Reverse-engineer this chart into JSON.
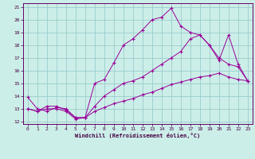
{
  "xlabel": "Windchill (Refroidissement éolien,°C)",
  "background_color": "#cceee8",
  "grid_color": "#99cccc",
  "line_color1": "#990099",
  "line_color2": "#993399",
  "line_color3": "#660066",
  "xlim": [
    -0.5,
    23.5
  ],
  "ylim": [
    11.8,
    21.3
  ],
  "yticks": [
    12,
    13,
    14,
    15,
    16,
    17,
    18,
    19,
    20,
    21
  ],
  "xticks": [
    0,
    1,
    2,
    3,
    4,
    5,
    6,
    7,
    8,
    9,
    10,
    11,
    12,
    13,
    14,
    15,
    16,
    17,
    18,
    19,
    20,
    21,
    22,
    23
  ],
  "series1_x": [
    0,
    1,
    2,
    3,
    4,
    5,
    6,
    7,
    8,
    9,
    10,
    11,
    12,
    13,
    14,
    15,
    16,
    17,
    18,
    19,
    20,
    21,
    22,
    23
  ],
  "series1_y": [
    13.9,
    13.0,
    12.8,
    13.1,
    13.0,
    12.3,
    12.3,
    15.0,
    15.3,
    16.6,
    18.0,
    18.5,
    19.2,
    20.0,
    20.2,
    20.9,
    19.5,
    19.0,
    18.8,
    18.0,
    16.8,
    18.8,
    16.5,
    15.2
  ],
  "series2_x": [
    0,
    1,
    2,
    3,
    4,
    5,
    6,
    7,
    8,
    9,
    10,
    11,
    12,
    13,
    14,
    15,
    16,
    17,
    18,
    19,
    20,
    21,
    22,
    23
  ],
  "series2_y": [
    13.0,
    12.8,
    13.2,
    13.2,
    12.9,
    12.3,
    12.3,
    13.2,
    14.0,
    14.5,
    15.0,
    15.2,
    15.5,
    16.0,
    16.5,
    17.0,
    17.5,
    18.5,
    18.8,
    18.0,
    17.0,
    16.5,
    16.3,
    15.2
  ],
  "series3_x": [
    0,
    1,
    2,
    3,
    4,
    5,
    6,
    7,
    8,
    9,
    10,
    11,
    12,
    13,
    14,
    15,
    16,
    17,
    18,
    19,
    20,
    21,
    22,
    23
  ],
  "series3_y": [
    13.0,
    12.8,
    13.0,
    13.0,
    12.8,
    12.2,
    12.3,
    12.8,
    13.1,
    13.4,
    13.6,
    13.8,
    14.1,
    14.3,
    14.6,
    14.9,
    15.1,
    15.3,
    15.5,
    15.6,
    15.8,
    15.5,
    15.3,
    15.2
  ]
}
